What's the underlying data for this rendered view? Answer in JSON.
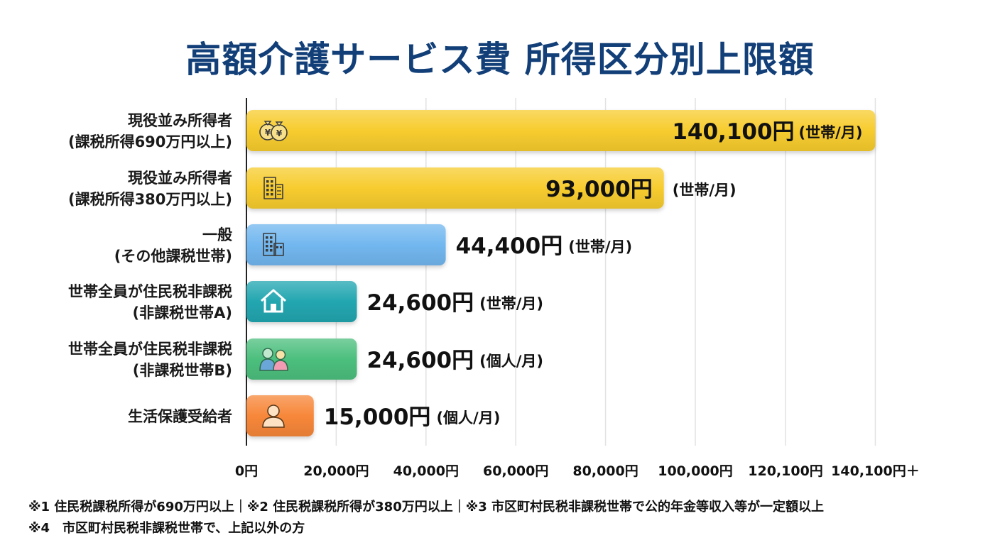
{
  "title": "高額介護サービス費 所得区分別上限額",
  "chart_data": {
    "type": "bar",
    "orientation": "horizontal",
    "categories": [
      [
        "現役並み所得者",
        "(課税所得690万円以上)"
      ],
      [
        "現役並み所得者",
        "(課税所得380万円以上)"
      ],
      [
        "一般",
        "(その他課税世帯)"
      ],
      [
        "世帯全員が住民税非課税",
        "(非課税世帯A)"
      ],
      [
        "世帯全員が住民税非課税",
        "(非課税世帯B)"
      ],
      [
        "生活保護受給者"
      ]
    ],
    "values": [
      140100,
      93000,
      44400,
      24600,
      24600,
      15000
    ],
    "value_labels": [
      "140,100円",
      "93,000円",
      "44,400円",
      "24,600円",
      "24,600円",
      "15,000円"
    ],
    "units": [
      "(世帯/月)",
      "(世帯/月)",
      "(世帯/月)",
      "(世帯/月)",
      "(個人/月)",
      "(個人/月)"
    ],
    "value_label_inside": [
      true,
      true,
      false,
      false,
      false,
      false
    ],
    "colors": [
      "#f7cc2f",
      "#f7cc2f",
      "#72b7ef",
      "#22a6b0",
      "#4cbf7d",
      "#f7873a"
    ],
    "icons": [
      "money-bag-icon",
      "office-building-icon",
      "buildings-icon",
      "house-icon",
      "family-icon",
      "person-icon"
    ],
    "xticks": [
      0,
      20000,
      40000,
      60000,
      80000,
      100000,
      120100,
      140100
    ],
    "xtick_labels": [
      "0円",
      "20,000円",
      "40,000円",
      "60,000円",
      "80,000円",
      "100,000円",
      "120,100円",
      "140,100円＋"
    ],
    "xlim": [
      0,
      150000
    ],
    "grid": true
  },
  "footnotes": [
    "※1 住民税課税所得が690万円以上｜※2 住民税課税所得が380万円以上｜※3 市区町村民税非課税世帯で公的年金等収入等が一定額以上",
    "※4　市区町村民税非課税世帯で、上記以外の方"
  ]
}
